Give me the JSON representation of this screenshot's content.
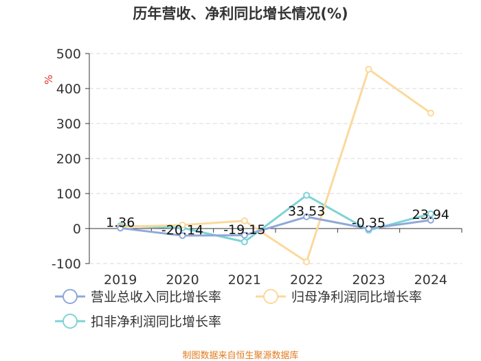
{
  "chart_data": {
    "type": "line",
    "title": "历年营收、净利同比增长情况(%)",
    "ylabel": "%",
    "xlabel": "",
    "categories": [
      "2019",
      "2020",
      "2021",
      "2022",
      "2023",
      "2024"
    ],
    "ylim": [
      -100,
      500
    ],
    "yticks": [
      -100,
      0,
      100,
      200,
      300,
      400,
      500
    ],
    "grid": true,
    "legend_position": "bottom",
    "series": [
      {
        "name": "营业总收入同比增长率",
        "color": "#8fa8d8",
        "values": [
          1.36,
          -20.14,
          -19.15,
          33.53,
          -0.35,
          23.94
        ],
        "labels": [
          "1.36",
          "-20.14",
          "-19.15",
          "33.53",
          "-0.35",
          "23.94"
        ]
      },
      {
        "name": "归母净利润同比增长率",
        "color": "#fbd99a",
        "values": [
          5,
          10,
          22,
          -95,
          455,
          330
        ]
      },
      {
        "name": "扣非净利润同比增长率",
        "color": "#7dd3d6",
        "values": [
          8,
          2,
          -38,
          95,
          -5,
          42
        ]
      }
    ]
  },
  "footer": {
    "source": "制图数据来自恒生聚源数据库"
  }
}
